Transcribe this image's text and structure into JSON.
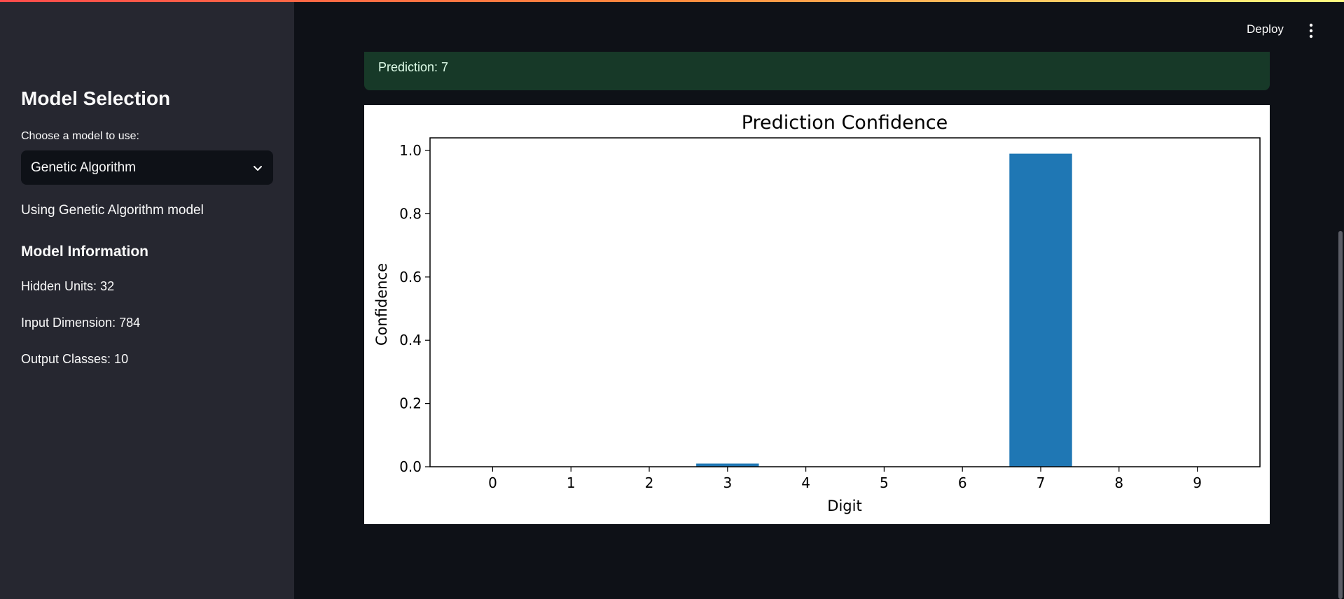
{
  "header": {
    "deploy_label": "Deploy",
    "menu_icon": "vertical-ellipsis-icon"
  },
  "sidebar": {
    "title": "Model Selection",
    "select_label": "Choose a model to use:",
    "select_value": "Genetic Algorithm",
    "status": "Using Genetic Algorithm model",
    "info_heading": "Model Information",
    "info": [
      "Hidden Units: 32",
      "Input Dimension: 784",
      "Output Classes: 10"
    ]
  },
  "main": {
    "prediction": "Prediction: 7"
  },
  "chart_data": {
    "type": "bar",
    "title": "Prediction Confidence",
    "xlabel": "Digit",
    "ylabel": "Confidence",
    "categories": [
      "0",
      "1",
      "2",
      "3",
      "4",
      "5",
      "6",
      "7",
      "8",
      "9"
    ],
    "values": [
      0.0,
      0.0,
      0.0,
      0.01,
      0.0,
      0.0,
      0.0,
      0.99,
      0.0,
      0.0
    ],
    "yticks": [
      "0.0",
      "0.2",
      "0.4",
      "0.6",
      "0.8",
      "1.0"
    ],
    "ylim": [
      0,
      1.04
    ],
    "bar_color": "#1f77b4",
    "grid": false
  }
}
